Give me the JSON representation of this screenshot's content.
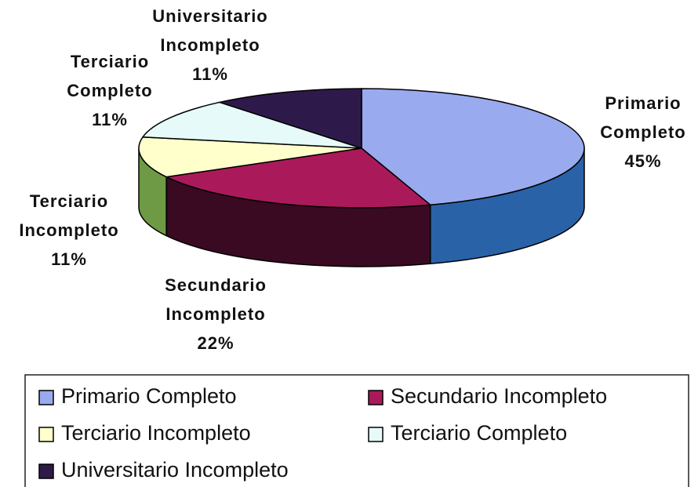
{
  "chart_data": {
    "type": "pie3d",
    "categories": [
      "Primario Completo",
      "Secundario Incompleto",
      "Terciario Incompleto",
      "Terciario Completo",
      "Universitario Incompleto"
    ],
    "values": [
      45,
      22,
      11,
      11,
      11
    ],
    "value_labels": [
      "45%",
      "22%",
      "11%",
      "11%",
      "11%"
    ],
    "colors": [
      "#99aaee",
      "#aa1a5a",
      "#ffffcc",
      "#e6fafa",
      "#2e1a4a"
    ],
    "side_colors": [
      "#2a62a8",
      "#3a0a22",
      "#6f9a45",
      "#9fbfbf",
      "#1a0e2c"
    ],
    "legend": "bottom"
  }
}
